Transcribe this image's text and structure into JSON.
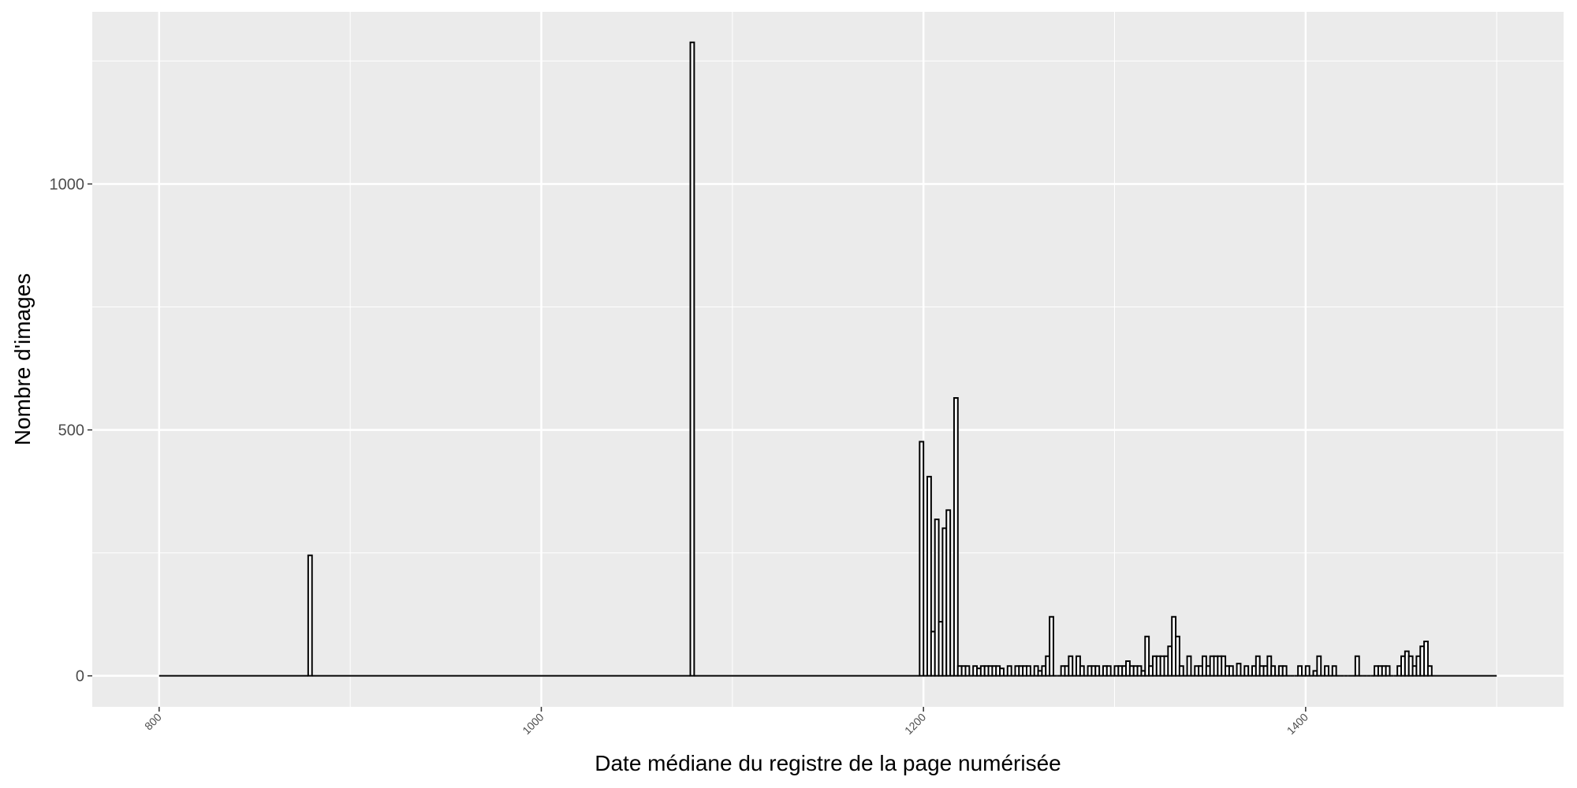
{
  "chart_data": {
    "type": "histogram",
    "x_label": "Date médiane du registre de la page numérisée",
    "y_label": "Nombre d'images",
    "bins": [
      800,
      878,
      880,
      1078,
      1080,
      1198,
      1200,
      1202,
      1204,
      1206,
      1208,
      1210,
      1212,
      1214,
      1216,
      1218,
      1220,
      1222,
      1224,
      1226,
      1228,
      1230,
      1232,
      1234,
      1236,
      1238,
      1240,
      1242,
      1244,
      1246,
      1248,
      1250,
      1252,
      1254,
      1256,
      1258,
      1260,
      1262,
      1264,
      1266,
      1268,
      1270,
      1272,
      1274,
      1276,
      1278,
      1280,
      1282,
      1284,
      1286,
      1288,
      1290,
      1292,
      1294,
      1296,
      1298,
      1300,
      1302,
      1304,
      1306,
      1308,
      1310,
      1312,
      1314,
      1316,
      1318,
      1320,
      1322,
      1324,
      1326,
      1328,
      1330,
      1332,
      1334,
      1336,
      1338,
      1340,
      1342,
      1344,
      1346,
      1348,
      1350,
      1352,
      1354,
      1356,
      1358,
      1360,
      1362,
      1364,
      1366,
      1368,
      1370,
      1372,
      1374,
      1376,
      1378,
      1380,
      1382,
      1384,
      1386,
      1388,
      1390,
      1392,
      1394,
      1396,
      1398,
      1400,
      1402,
      1404,
      1406,
      1408,
      1410,
      1412,
      1414,
      1416,
      1418,
      1420,
      1422,
      1424,
      1426,
      1428,
      1430,
      1432,
      1434,
      1436,
      1438,
      1440,
      1442,
      1444,
      1446,
      1448,
      1450,
      1452,
      1454,
      1456,
      1458,
      1460,
      1462,
      1464,
      1466,
      1500
    ],
    "values": [
      0,
      245,
      0,
      1288,
      0,
      476,
      0,
      405,
      90,
      318,
      110,
      300,
      337,
      0,
      565,
      20,
      20,
      20,
      0,
      20,
      15,
      20,
      20,
      20,
      20,
      20,
      15,
      0,
      20,
      0,
      20,
      20,
      20,
      20,
      0,
      20,
      10,
      20,
      40,
      120,
      0,
      0,
      20,
      20,
      40,
      0,
      40,
      20,
      0,
      20,
      20,
      20,
      0,
      20,
      20,
      0,
      20,
      20,
      20,
      30,
      20,
      20,
      20,
      10,
      80,
      20,
      40,
      40,
      40,
      40,
      60,
      120,
      80,
      20,
      0,
      40,
      0,
      20,
      20,
      40,
      20,
      40,
      40,
      40,
      40,
      20,
      20,
      0,
      25,
      0,
      20,
      0,
      20,
      40,
      20,
      20,
      40,
      20,
      0,
      20,
      20,
      0,
      0,
      0,
      20,
      0,
      20,
      0,
      10,
      40,
      0,
      20,
      0,
      20,
      0,
      0,
      0,
      0,
      0,
      40,
      0,
      0,
      0,
      0,
      20,
      20,
      20,
      20,
      0,
      0,
      20,
      40,
      50,
      40,
      20,
      40,
      60,
      70,
      20,
      0
    ],
    "fill": "#ffffff",
    "outline": "#000000",
    "xlim": [
      765,
      1535
    ],
    "ylim": [
      -63,
      1350
    ],
    "xticks": [
      800,
      1000,
      1200,
      1400
    ],
    "yticks": [
      0,
      500,
      1000
    ],
    "x_minor_grid": [
      900,
      1100,
      1300,
      1500
    ],
    "y_minor_grid": [
      250,
      750,
      1250
    ],
    "grid": true
  }
}
